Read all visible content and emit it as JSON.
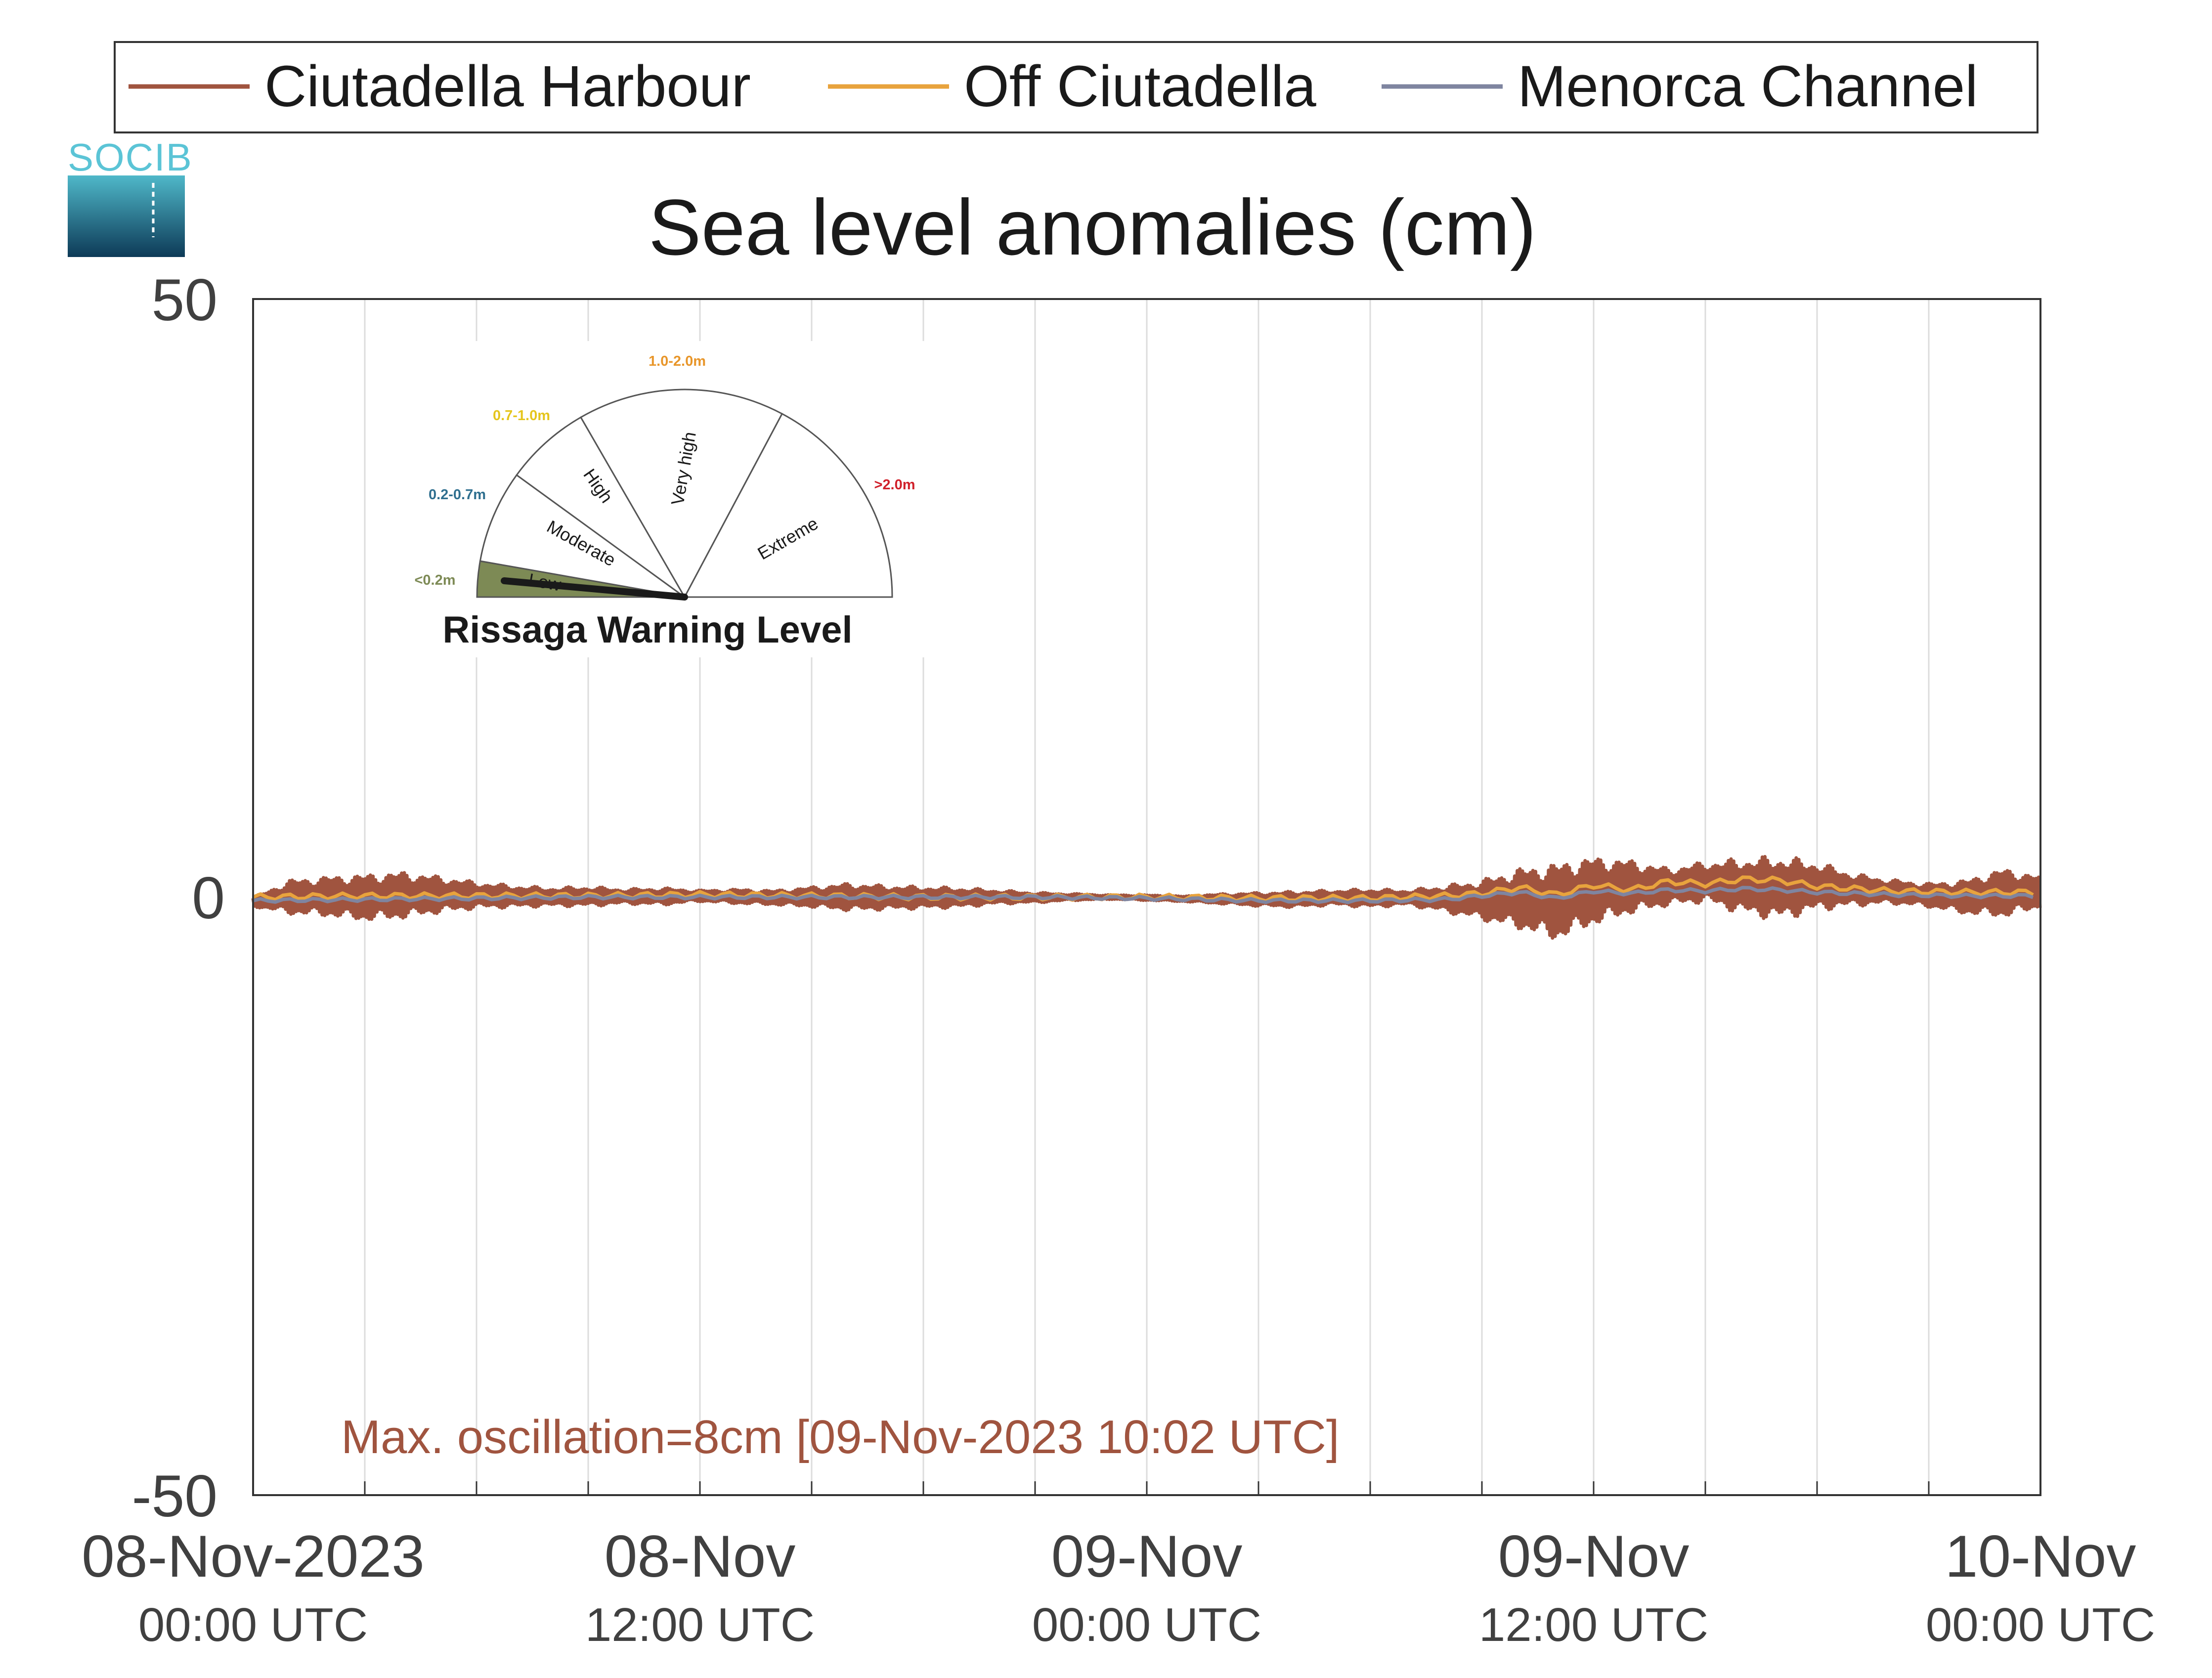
{
  "chart_data": {
    "type": "line",
    "title": "Sea level anomalies (cm)",
    "ylim": [
      -50,
      50
    ],
    "yticks": [
      "50",
      "0",
      "-50"
    ],
    "x_range_hours": [
      0,
      48
    ],
    "grid": "vertical lines every 3 hours",
    "legend_position": "top",
    "x_tick_labels": [
      {
        "hour": 0,
        "date": "08-Nov-2023",
        "time": "00:00 UTC"
      },
      {
        "hour": 12,
        "date": "08-Nov",
        "time": "12:00 UTC"
      },
      {
        "hour": 24,
        "date": "09-Nov",
        "time": "00:00 UTC"
      },
      {
        "hour": 36,
        "date": "09-Nov",
        "time": "12:00 UTC"
      },
      {
        "hour": 48,
        "date": "10-Nov",
        "time": "00:00 UTC"
      }
    ],
    "series": [
      {
        "name": "Ciutadella Harbour",
        "color": "#a0543f",
        "style": "oscillation envelope",
        "hours": [
          0,
          1,
          2,
          3,
          4,
          5,
          6,
          7,
          8,
          9,
          10,
          11,
          12,
          13,
          14,
          15,
          16,
          17,
          18,
          19,
          20,
          21,
          22,
          23,
          24,
          25,
          26,
          27,
          28,
          29,
          30,
          31,
          32,
          33,
          34,
          35,
          36,
          37,
          38,
          39,
          40,
          41,
          42,
          43,
          44,
          45,
          46,
          47,
          48
        ],
        "upper": [
          0.0,
          1.5,
          1.8,
          2.0,
          2.2,
          1.8,
          1.3,
          1.0,
          0.8,
          0.9,
          0.7,
          0.8,
          0.6,
          0.7,
          0.6,
          0.9,
          1.2,
          1.0,
          0.9,
          0.8,
          0.6,
          0.4,
          0.3,
          0.2,
          0.2,
          0.1,
          0.3,
          0.4,
          0.5,
          0.6,
          0.7,
          0.6,
          1.0,
          1.5,
          2.5,
          3.0,
          3.5,
          3.2,
          2.5,
          3.0,
          3.3,
          3.5,
          3.0,
          2.0,
          1.5,
          1.2,
          1.5,
          2.5,
          1.8
        ],
        "lower": [
          -0.8,
          -1.5,
          -1.7,
          -2.1,
          -1.9,
          -1.4,
          -1.0,
          -0.9,
          -0.8,
          -0.8,
          -0.6,
          -0.7,
          -0.4,
          -0.6,
          -0.7,
          -0.9,
          -1.2,
          -1.1,
          -1.0,
          -0.9,
          -0.6,
          -0.5,
          -0.3,
          -0.2,
          -0.3,
          -0.4,
          -0.6,
          -0.8,
          -0.9,
          -0.7,
          -0.9,
          -0.7,
          -1.3,
          -2.0,
          -2.8,
          -3.8,
          -2.5,
          -1.5,
          -0.8,
          -0.5,
          -1.5,
          -2.0,
          -1.2,
          -0.8,
          -0.6,
          -0.9,
          -1.5,
          -1.8,
          -1.0
        ]
      },
      {
        "name": "Off Ciutadella",
        "color": "#e8a33d",
        "hours": [
          0,
          3,
          6,
          9,
          12,
          15,
          18,
          21,
          24,
          27,
          30,
          32,
          33,
          34,
          35,
          36,
          37,
          38,
          39,
          40,
          41,
          42,
          44,
          46,
          48
        ],
        "values": [
          0.0,
          0.1,
          0.1,
          0.1,
          0.2,
          0.1,
          0.0,
          0.0,
          0.0,
          -0.1,
          -0.1,
          0.1,
          0.3,
          0.8,
          0.2,
          1.0,
          0.6,
          1.3,
          1.1,
          1.5,
          1.4,
          0.9,
          0.5,
          0.4,
          0.4
        ]
      },
      {
        "name": "Menorca Channel",
        "color": "#7f85a0",
        "hours": [
          0,
          3,
          6,
          9,
          12,
          15,
          18,
          21,
          24,
          27,
          30,
          32,
          33,
          34,
          35,
          36,
          37,
          38,
          39,
          40,
          41,
          42,
          44,
          46,
          48
        ],
        "values": [
          -0.3,
          -0.2,
          -0.1,
          0.0,
          0.0,
          0.0,
          0.0,
          0.0,
          -0.1,
          -0.3,
          -0.3,
          -0.2,
          0.1,
          0.4,
          -0.1,
          0.5,
          0.3,
          0.6,
          0.5,
          0.7,
          0.6,
          0.4,
          0.2,
          0.1,
          0.1
        ]
      }
    ],
    "annotation": "Max. oscillation=8cm [09-Nov-2023 10:02 UTC]",
    "annotation_color": "#a0543f"
  },
  "logo": {
    "text": "SOCIB"
  },
  "gauge": {
    "title": "Rissaga Warning Level",
    "needle_level": "Low",
    "levels": [
      {
        "label": "Low",
        "range": "<0.2m",
        "color": "#7d8a55"
      },
      {
        "label": "Moderate",
        "range": "0.2-0.7m",
        "color": "#2f6f8f"
      },
      {
        "label": "High",
        "range": "0.7-1.0m",
        "color": "#e5c51c"
      },
      {
        "label": "Very high",
        "range": "1.0-2.0m",
        "color": "#e8962a"
      },
      {
        "label": "Extreme",
        "range": ">2.0m",
        "color": "#d0202a"
      }
    ]
  }
}
